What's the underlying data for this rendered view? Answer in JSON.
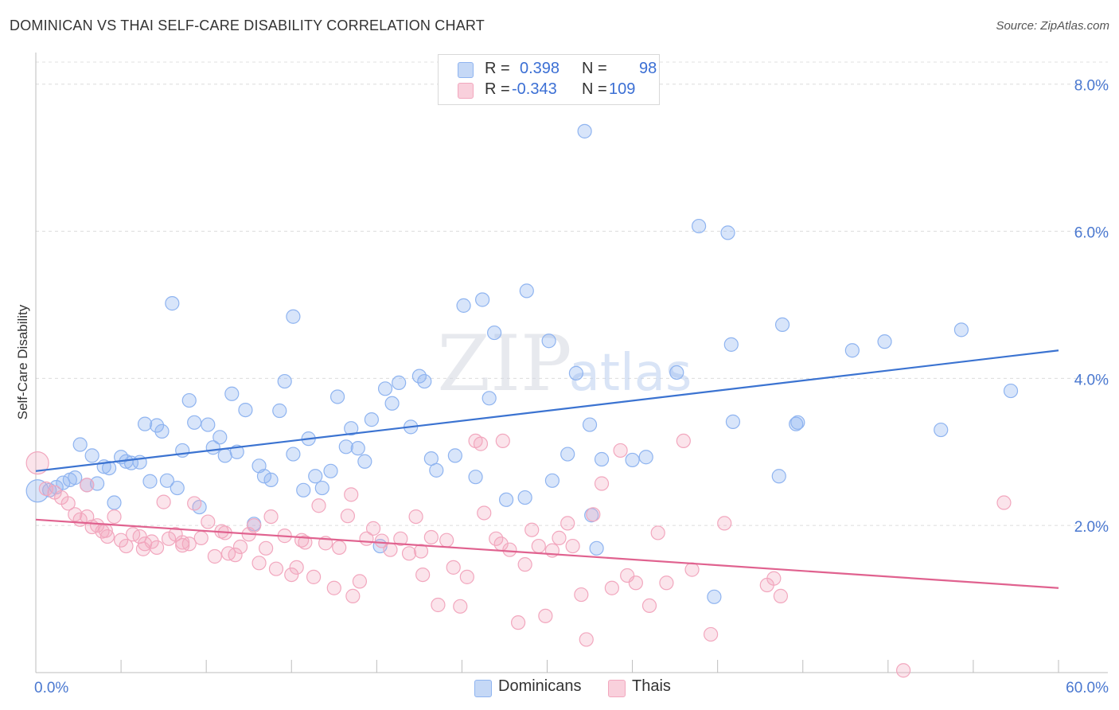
{
  "header": {
    "title": "DOMINICAN VS THAI SELF-CARE DISABILITY CORRELATION CHART",
    "source": "Source: ZipAtlas.com"
  },
  "watermark": {
    "text_a": "ZIP",
    "text_b": "atlas"
  },
  "legend_top": {
    "rows": [
      {
        "r_label": "R =",
        "r_value": "0.398",
        "n_label": "N =",
        "n_value": "98",
        "color": "#8fb4f0"
      },
      {
        "r_label": "R =",
        "r_value": "-0.343",
        "n_label": "N =",
        "n_value": "109",
        "color": "#f2a7be"
      }
    ]
  },
  "legend_bottom": {
    "items": [
      {
        "label": "Dominicans",
        "color": "#8fb4f0"
      },
      {
        "label": "Thais",
        "color": "#f2a7be"
      }
    ]
  },
  "chart_data": {
    "type": "scatter",
    "title": "DOMINICAN VS THAI SELF-CARE DISABILITY CORRELATION CHART",
    "xlabel": "",
    "ylabel": "Self-Care Disability",
    "xlim": [
      0,
      60
    ],
    "ylim": [
      0,
      8.3
    ],
    "x_tick_labels": [
      "0.0%",
      "60.0%"
    ],
    "y_ticks": [
      2,
      4,
      6,
      8
    ],
    "y_tick_labels": [
      "2.0%",
      "4.0%",
      "6.0%",
      "8.0%"
    ],
    "grid": true,
    "legend_position": "top-center",
    "series": [
      {
        "name": "Dominicans",
        "color": "#8fb4f0",
        "line_color": "#3b73d1",
        "trend": {
          "x": [
            0,
            60
          ],
          "y": [
            2.74,
            4.38
          ]
        },
        "points": [
          [
            0.1,
            2.47
          ],
          [
            0.8,
            2.48
          ],
          [
            1.2,
            2.52
          ],
          [
            1.6,
            2.58
          ],
          [
            2.0,
            2.62
          ],
          [
            2.3,
            2.65
          ],
          [
            2.6,
            3.1
          ],
          [
            3.0,
            2.55
          ],
          [
            3.3,
            2.95
          ],
          [
            3.6,
            2.57
          ],
          [
            4.0,
            2.8
          ],
          [
            4.3,
            2.78
          ],
          [
            4.6,
            2.31
          ],
          [
            5.0,
            2.93
          ],
          [
            5.3,
            2.87
          ],
          [
            5.6,
            2.85
          ],
          [
            6.1,
            2.86
          ],
          [
            6.4,
            3.38
          ],
          [
            6.7,
            2.6
          ],
          [
            7.1,
            3.36
          ],
          [
            7.4,
            3.28
          ],
          [
            7.7,
            2.61
          ],
          [
            8.0,
            5.02
          ],
          [
            8.3,
            2.51
          ],
          [
            8.6,
            3.02
          ],
          [
            9.0,
            3.7
          ],
          [
            9.3,
            3.4
          ],
          [
            9.6,
            2.25
          ],
          [
            10.1,
            3.37
          ],
          [
            10.4,
            3.06
          ],
          [
            10.8,
            3.2
          ],
          [
            11.1,
            2.95
          ],
          [
            11.5,
            3.79
          ],
          [
            11.8,
            3.0
          ],
          [
            12.3,
            3.57
          ],
          [
            12.8,
            2.02
          ],
          [
            13.1,
            2.81
          ],
          [
            13.4,
            2.67
          ],
          [
            13.8,
            2.62
          ],
          [
            14.3,
            3.56
          ],
          [
            14.6,
            3.96
          ],
          [
            15.1,
            2.97
          ],
          [
            15.1,
            4.84
          ],
          [
            15.7,
            2.48
          ],
          [
            16.0,
            3.18
          ],
          [
            16.4,
            2.67
          ],
          [
            16.8,
            2.51
          ],
          [
            17.3,
            2.74
          ],
          [
            17.7,
            3.75
          ],
          [
            18.2,
            3.07
          ],
          [
            18.5,
            3.32
          ],
          [
            18.9,
            3.05
          ],
          [
            19.3,
            2.87
          ],
          [
            19.7,
            3.44
          ],
          [
            20.2,
            1.72
          ],
          [
            20.5,
            3.86
          ],
          [
            20.9,
            3.66
          ],
          [
            21.3,
            3.94
          ],
          [
            22.0,
            3.34
          ],
          [
            22.5,
            4.03
          ],
          [
            22.8,
            3.96
          ],
          [
            23.2,
            2.91
          ],
          [
            23.5,
            2.75
          ],
          [
            24.6,
            2.95
          ],
          [
            25.1,
            4.99
          ],
          [
            25.8,
            2.66
          ],
          [
            26.2,
            5.07
          ],
          [
            26.6,
            3.73
          ],
          [
            26.9,
            4.62
          ],
          [
            27.6,
            2.35
          ],
          [
            28.8,
            5.19
          ],
          [
            28.7,
            2.38
          ],
          [
            30.1,
            4.51
          ],
          [
            30.3,
            2.61
          ],
          [
            31.2,
            2.97
          ],
          [
            31.7,
            4.07
          ],
          [
            32.5,
            3.37
          ],
          [
            32.6,
            2.14
          ],
          [
            32.9,
            1.69
          ],
          [
            33.2,
            2.9
          ],
          [
            32.2,
            7.36
          ],
          [
            35.8,
            2.93
          ],
          [
            35.0,
            2.89
          ],
          [
            37.6,
            4.08
          ],
          [
            38.9,
            6.07
          ],
          [
            40.8,
            4.46
          ],
          [
            40.9,
            3.41
          ],
          [
            40.6,
            5.98
          ],
          [
            43.6,
            2.67
          ],
          [
            43.8,
            4.73
          ],
          [
            44.6,
            3.38
          ],
          [
            44.7,
            3.4
          ],
          [
            47.9,
            4.38
          ],
          [
            49.8,
            4.5
          ],
          [
            53.1,
            3.3
          ],
          [
            54.3,
            4.66
          ],
          [
            57.2,
            3.83
          ],
          [
            39.8,
            1.03
          ]
        ]
      },
      {
        "name": "Thais",
        "color": "#f2a7be",
        "line_color": "#e0628f",
        "trend": {
          "x": [
            0,
            60
          ],
          "y": [
            2.08,
            1.15
          ]
        },
        "points": [
          [
            0.1,
            2.85
          ],
          [
            0.6,
            2.5
          ],
          [
            1.1,
            2.45
          ],
          [
            1.5,
            2.38
          ],
          [
            1.9,
            2.3
          ],
          [
            2.3,
            2.15
          ],
          [
            2.6,
            2.08
          ],
          [
            3.0,
            2.55
          ],
          [
            3.3,
            1.98
          ],
          [
            3.6,
            2.0
          ],
          [
            3.9,
            1.92
          ],
          [
            4.2,
            1.85
          ],
          [
            4.6,
            2.12
          ],
          [
            5.0,
            1.8
          ],
          [
            5.3,
            1.72
          ],
          [
            5.7,
            1.88
          ],
          [
            6.1,
            1.85
          ],
          [
            6.4,
            1.75
          ],
          [
            6.8,
            1.78
          ],
          [
            7.1,
            1.7
          ],
          [
            7.5,
            2.32
          ],
          [
            7.8,
            1.82
          ],
          [
            8.2,
            1.88
          ],
          [
            8.6,
            1.73
          ],
          [
            9.0,
            1.75
          ],
          [
            9.3,
            2.3
          ],
          [
            9.7,
            1.83
          ],
          [
            10.1,
            2.05
          ],
          [
            10.5,
            1.58
          ],
          [
            10.9,
            1.92
          ],
          [
            11.3,
            1.62
          ],
          [
            11.7,
            1.6
          ],
          [
            12.0,
            1.71
          ],
          [
            12.5,
            1.88
          ],
          [
            12.8,
            2.0
          ],
          [
            13.1,
            1.49
          ],
          [
            13.5,
            1.69
          ],
          [
            13.8,
            2.12
          ],
          [
            14.1,
            1.41
          ],
          [
            14.6,
            1.86
          ],
          [
            15.0,
            1.33
          ],
          [
            15.3,
            1.43
          ],
          [
            15.8,
            1.77
          ],
          [
            16.3,
            1.3
          ],
          [
            16.6,
            2.27
          ],
          [
            17.0,
            1.76
          ],
          [
            17.5,
            1.15
          ],
          [
            17.8,
            1.7
          ],
          [
            18.3,
            2.13
          ],
          [
            18.6,
            1.04
          ],
          [
            19.0,
            1.24
          ],
          [
            19.4,
            1.82
          ],
          [
            19.8,
            1.96
          ],
          [
            20.3,
            1.79
          ],
          [
            20.8,
            1.67
          ],
          [
            21.4,
            1.82
          ],
          [
            21.9,
            1.62
          ],
          [
            22.3,
            2.12
          ],
          [
            22.7,
            1.33
          ],
          [
            23.2,
            1.84
          ],
          [
            23.6,
            0.92
          ],
          [
            24.1,
            1.8
          ],
          [
            24.5,
            1.43
          ],
          [
            24.9,
            0.9
          ],
          [
            25.3,
            1.3
          ],
          [
            25.8,
            3.15
          ],
          [
            26.3,
            2.17
          ],
          [
            27.0,
            1.82
          ],
          [
            27.3,
            1.75
          ],
          [
            27.8,
            1.67
          ],
          [
            28.3,
            0.68
          ],
          [
            28.7,
            1.47
          ],
          [
            29.1,
            1.94
          ],
          [
            29.5,
            1.72
          ],
          [
            29.9,
            0.77
          ],
          [
            30.3,
            1.66
          ],
          [
            30.7,
            1.83
          ],
          [
            31.2,
            2.03
          ],
          [
            31.5,
            1.72
          ],
          [
            32.0,
            1.06
          ],
          [
            32.3,
            0.45
          ],
          [
            32.7,
            2.15
          ],
          [
            33.2,
            2.57
          ],
          [
            33.8,
            1.15
          ],
          [
            34.3,
            3.02
          ],
          [
            34.7,
            1.32
          ],
          [
            35.2,
            1.22
          ],
          [
            36.0,
            0.91
          ],
          [
            36.5,
            1.9
          ],
          [
            37.0,
            1.22
          ],
          [
            38.0,
            3.15
          ],
          [
            38.5,
            1.4
          ],
          [
            39.6,
            0.52
          ],
          [
            40.4,
            2.03
          ],
          [
            42.9,
            1.19
          ],
          [
            43.7,
            1.04
          ],
          [
            50.9,
            0.03
          ],
          [
            56.8,
            2.31
          ],
          [
            43.3,
            1.28
          ],
          [
            27.4,
            3.15
          ],
          [
            26.1,
            3.11
          ],
          [
            22.6,
            1.65
          ],
          [
            18.5,
            2.42
          ],
          [
            15.6,
            1.8
          ],
          [
            11.1,
            1.9
          ],
          [
            8.6,
            1.77
          ],
          [
            6.3,
            1.68
          ],
          [
            4.1,
            1.93
          ],
          [
            3.0,
            2.12
          ]
        ]
      }
    ]
  }
}
